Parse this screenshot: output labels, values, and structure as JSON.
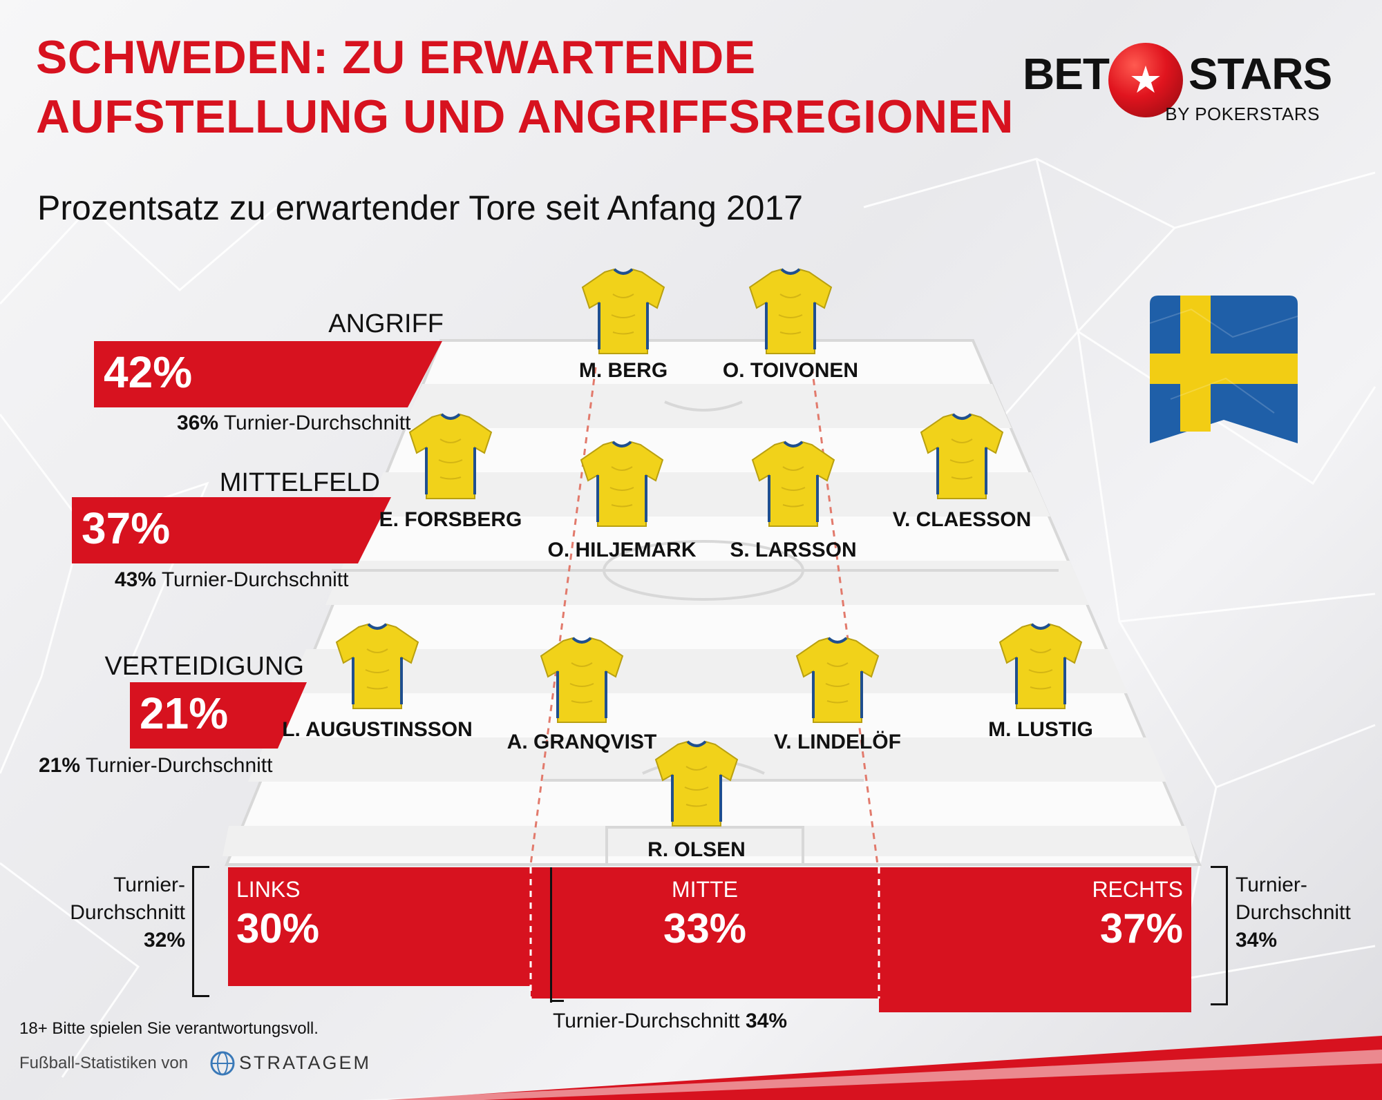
{
  "header": {
    "title_line1": "SCHWEDEN: ZU ERWARTENDE",
    "title_line2": "AUFSTELLUNG UND ANGRIFFSREGIONEN",
    "subtitle": "Prozentsatz zu erwartender Tore seit Anfang 2017"
  },
  "logo": {
    "bet": "BET",
    "stars": "STARS",
    "by": "BY POKERSTARS",
    "star": "★"
  },
  "zones": [
    {
      "label": "ANGRIFF",
      "value": "42%",
      "avg_value": "36%",
      "avg_text": "Turnier-Durchschnitt"
    },
    {
      "label": "MITTELFELD",
      "value": "37%",
      "avg_value": "43%",
      "avg_text": "Turnier-Durchschnitt"
    },
    {
      "label": "VERTEIDIGUNG",
      "value": "21%",
      "avg_value": "21%",
      "avg_text": "Turnier-Durchschnitt"
    }
  ],
  "players": [
    "M. BERG",
    "O. TOIVONEN",
    "E. FORSBERG",
    "O. HILJEMARK",
    "S. LARSSON",
    "V. CLAESSON",
    "L. AUGUSTINSSON",
    "A. GRANQVIST",
    "V. LINDELÖF",
    "M. LUSTIG",
    "R. OLSEN"
  ],
  "columns": [
    {
      "label": "LINKS",
      "value": "30%"
    },
    {
      "label": "MITTE",
      "value": "33%"
    },
    {
      "label": "RECHTS",
      "value": "37%"
    }
  ],
  "column_avgs": {
    "left": {
      "line1": "Turnier-",
      "line2": "Durchschnitt",
      "value": "32%"
    },
    "middle": {
      "text": "Turnier-Durchschnitt",
      "value": "34%"
    },
    "right": {
      "line1": "Turnier-",
      "line2": "Durchschnitt",
      "value": "34%"
    }
  },
  "footer": {
    "disclaimer": "18+ Bitte spielen Sie verantwortungsvoll.",
    "stats_by": "Fußball-Statistiken von",
    "stratagem": "STRATAGEM"
  },
  "colors": {
    "accent_red": "#d7121f",
    "jersey_yellow": "#f1d21a",
    "flag_blue": "#1f5fa8",
    "flag_yellow": "#f2cd14"
  }
}
